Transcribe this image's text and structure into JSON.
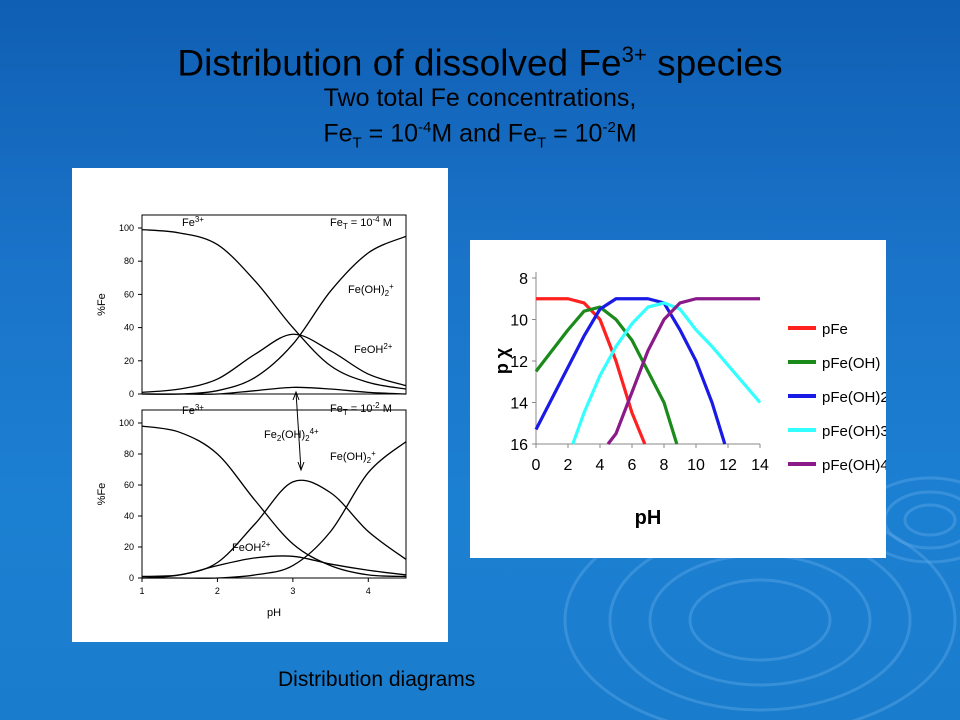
{
  "slide": {
    "title_main": "Distribution of dissolved Fe",
    "title_main_sup": "3+",
    "title_main_end": " species",
    "subtitle_line1": "Two total Fe concentrations,",
    "subtitle_fe1": "Fe",
    "subtitle_T1": "T",
    "subtitle_eq1": " = 10",
    "subtitle_exp1": "-4",
    "subtitle_mid": "M and Fe",
    "subtitle_T2": "T",
    "subtitle_eq2": " = 10",
    "subtitle_exp2": "-2",
    "subtitle_end": "M",
    "caption": "Distribution diagrams"
  },
  "colors": {
    "red": "#ff2020",
    "green": "#1a8a1a",
    "blue": "#1a1ae6",
    "cyan": "#33ffff",
    "purple": "#8a1a8a"
  },
  "chart_data": [
    {
      "type": "line",
      "xlabel": "pH",
      "ylabel": "%Fe",
      "xlim": [
        1,
        4.5
      ],
      "ylim": [
        0,
        100
      ],
      "xticks": [
        "1",
        "2",
        "3",
        "4"
      ],
      "yticks": [
        "0",
        "20",
        "40",
        "60",
        "80",
        "100"
      ],
      "panels": [
        {
          "condition": "Fe_T = 10^-4 M",
          "labels": {
            "fe3": "Fe",
            "fe3_sup": "3+",
            "feT": "Fe",
            "feT_sub": "T",
            "feT_eq": " = 10",
            "feT_exp": "-4",
            "feT_unit": " M",
            "feoh2": "Fe(OH)",
            "feoh2_sub": "2",
            "feoh2_sup": "+",
            "feoh": "FeOH",
            "feoh_sup": "2+"
          },
          "series": [
            {
              "name": "Fe3+",
              "x": [
                1,
                1.5,
                2,
                2.5,
                3,
                3.5,
                4,
                4.5
              ],
              "values": [
                99,
                97,
                90,
                68,
                40,
                17,
                7,
                3
              ]
            },
            {
              "name": "Fe(OH)2+",
              "x": [
                1,
                1.5,
                2,
                2.5,
                3,
                3.5,
                4,
                4.5
              ],
              "values": [
                0,
                0,
                2,
                10,
                30,
                62,
                85,
                95
              ]
            },
            {
              "name": "FeOH2+",
              "x": [
                1,
                1.5,
                2,
                2.5,
                3,
                3.5,
                4,
                4.5
              ],
              "values": [
                1,
                3,
                9,
                24,
                36,
                26,
                12,
                5
              ]
            },
            {
              "name": "Fe2(OH)2 4+",
              "x": [
                1,
                1.5,
                2,
                2.5,
                3,
                3.5,
                4,
                4.5
              ],
              "values": [
                0,
                0,
                0,
                2,
                4,
                3,
                1,
                0
              ]
            }
          ]
        },
        {
          "condition": "Fe_T = 10^-2 M",
          "labels": {
            "fe3": "Fe",
            "fe3_sup": "3+",
            "feT": "Fe",
            "feT_sub": "T",
            "feT_eq": " = 10",
            "feT_exp": "-2",
            "feT_unit": " M",
            "fe2": "Fe",
            "fe2_sub": "2",
            "fe2_mid": "(OH)",
            "fe2_sub2": "2",
            "fe2_sup": "4+",
            "feoh2": "Fe(OH)",
            "feoh2_sub": "2",
            "feoh2_sup": "+",
            "feoh": "FeOH",
            "feoh_sup": "2+"
          },
          "series": [
            {
              "name": "Fe3+",
              "x": [
                1,
                1.5,
                2,
                2.5,
                3,
                3.5,
                4,
                4.5
              ],
              "values": [
                98,
                94,
                80,
                50,
                22,
                8,
                2,
                1
              ]
            },
            {
              "name": "Fe2(OH)2 4+",
              "x": [
                1,
                1.5,
                2,
                2.5,
                3,
                3.5,
                4,
                4.5
              ],
              "values": [
                0,
                2,
                10,
                35,
                62,
                55,
                30,
                12
              ]
            },
            {
              "name": "Fe(OH)2+",
              "x": [
                1,
                1.5,
                2,
                2.5,
                3,
                3.5,
                4,
                4.5
              ],
              "values": [
                0,
                0,
                0,
                2,
                8,
                30,
                68,
                88
              ]
            },
            {
              "name": "FeOH2+",
              "x": [
                1,
                1.5,
                2,
                2.5,
                3,
                3.5,
                4,
                4.5
              ],
              "values": [
                1,
                2,
                8,
                13,
                14,
                9,
                5,
                2
              ]
            }
          ]
        }
      ]
    },
    {
      "type": "line",
      "xlabel": "pH",
      "ylabel": "p χ",
      "xlim": [
        0,
        14
      ],
      "ylim": [
        8,
        16
      ],
      "y_inverted": true,
      "xticks": [
        "0",
        "2",
        "4",
        "6",
        "8",
        "10",
        "12",
        "14"
      ],
      "yticks": [
        "8",
        "10",
        "12",
        "14",
        "16"
      ],
      "legend_position": "right",
      "series": [
        {
          "name": "pFe",
          "x": [
            0,
            2,
            3,
            4,
            5,
            6,
            6.8
          ],
          "values": [
            9,
            9,
            9.2,
            10,
            12,
            14.5,
            16.3
          ]
        },
        {
          "name": "pFe(OH)",
          "x": [
            0,
            1,
            2,
            3,
            4,
            5,
            6,
            7,
            8,
            8.8
          ],
          "values": [
            12.5,
            11.5,
            10.5,
            9.6,
            9.4,
            10,
            11,
            12.5,
            14,
            16.3
          ]
        },
        {
          "name": "pFe(OH)2",
          "x": [
            0,
            1,
            2,
            3,
            4,
            5,
            6,
            7,
            8,
            9,
            10,
            11,
            11.8
          ],
          "values": [
            15.3,
            13.8,
            12.3,
            10.8,
            9.5,
            9,
            9,
            9,
            9.2,
            10.5,
            12,
            14,
            16.3
          ]
        },
        {
          "name": "pFe(OH)3",
          "x": [
            2.3,
            3,
            4,
            5,
            6,
            7,
            8,
            9,
            10,
            11,
            12,
            13,
            14
          ],
          "values": [
            16.3,
            14.5,
            12.7,
            11.3,
            10.2,
            9.4,
            9.2,
            9.5,
            10.5,
            11.3,
            12.2,
            13.1,
            14
          ]
        },
        {
          "name": "pFe(OH)4",
          "x": [
            4.5,
            5,
            6,
            7,
            8,
            9,
            10,
            11,
            12,
            13,
            14
          ],
          "values": [
            16.3,
            15.5,
            13.5,
            11.5,
            10,
            9.2,
            9,
            9,
            9,
            9,
            9
          ]
        }
      ]
    }
  ]
}
